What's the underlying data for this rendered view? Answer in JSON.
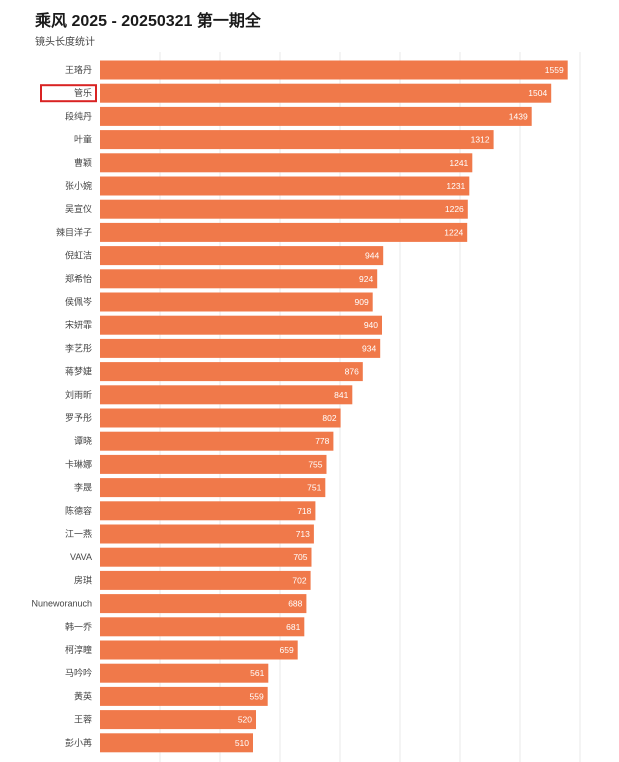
{
  "header": {
    "title": "乘风 2025 - 20250321 第一期全",
    "subtitle": "镜头长度统计"
  },
  "chart_data": {
    "type": "bar",
    "orientation": "horizontal",
    "title": "乘风 2025 - 20250321 第一期全",
    "subtitle": "镜头长度统计",
    "xlabel": "",
    "ylabel": "",
    "xlim": [
      0,
      1600
    ],
    "grid": true,
    "bar_color": "#f0794a",
    "highlight_color": "#d92323",
    "highlighted_category": "管乐",
    "categories": [
      "王珞丹",
      "管乐",
      "段纯丹",
      "叶童",
      "曹颖",
      "张小婉",
      "吴宣仪",
      "辣目洋子",
      "倪虹洁",
      "郑希怡",
      "侯佩岑",
      "宋妍霏",
      "李艺彤",
      "蒋梦婕",
      "刘雨昕",
      "罗予彤",
      "谭晓",
      "卡琳娜",
      "李晟",
      "陈德容",
      "江一燕",
      "VAVA",
      "房琪",
      "Nuneworanuch",
      "韩一乔",
      "柯淳瞳",
      "马吟吟",
      "黄英",
      "王蓉",
      "彭小苒"
    ],
    "values": [
      1559,
      1504,
      1439,
      1312,
      1241,
      1231,
      1226,
      1224,
      944,
      924,
      909,
      940,
      934,
      876,
      841,
      802,
      778,
      755,
      751,
      718,
      713,
      705,
      702,
      688,
      681,
      659,
      561,
      559,
      520,
      510
    ]
  }
}
